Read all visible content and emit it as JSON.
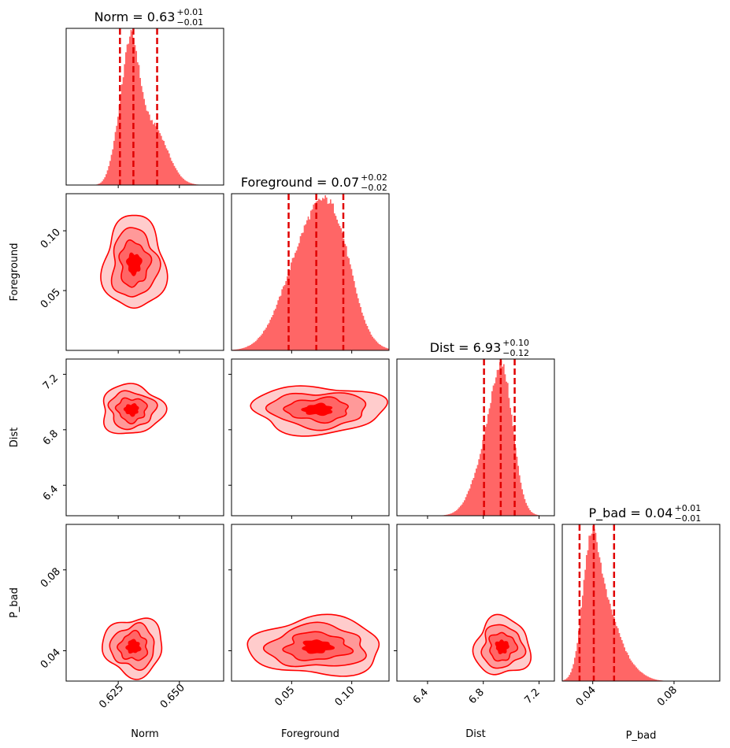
{
  "chart_data": {
    "type": "corner",
    "parameters": [
      {
        "name": "Norm",
        "title_main": "Norm = 0.63",
        "title_sup": "+0.01",
        "title_sub": "−0.01",
        "range": [
          0.6037,
          0.6681
        ],
        "ticks": [
          0.625,
          0.65
        ],
        "tick_labels": [
          "0.625",
          "0.650"
        ],
        "quantiles": [
          0.6257,
          0.6312,
          0.6409
        ],
        "peaks": [
          {
            "c": 0.63,
            "s": 0.0035,
            "a": 0.7
          },
          {
            "c": 0.639,
            "s": 0.006,
            "a": 0.32
          },
          {
            "c": 0.624,
            "s": 0.0028,
            "a": 0.12
          }
        ]
      },
      {
        "name": "Foreground",
        "title_main": "Foreground = 0.07",
        "title_sup": "+0.02",
        "title_sub": "−0.02",
        "range": [
          0.0,
          0.131
        ],
        "ticks": [
          0.05,
          0.1
        ],
        "tick_labels": [
          "0.05",
          "0.10"
        ],
        "quantiles": [
          0.0475,
          0.0705,
          0.093
        ],
        "peaks": [
          {
            "c": 0.078,
            "s": 0.018,
            "a": 0.78
          },
          {
            "c": 0.052,
            "s": 0.017,
            "a": 0.32
          },
          {
            "c": 0.092,
            "s": 0.012,
            "a": 0.15
          }
        ]
      },
      {
        "name": "Dist",
        "title_main": "Dist = 6.93",
        "title_sup": "+0.10",
        "title_sub": "−0.12",
        "range": [
          6.18,
          7.31
        ],
        "ticks": [
          6.4,
          6.8,
          7.2
        ],
        "tick_labels": [
          "6.4",
          "6.8",
          "7.2"
        ],
        "quantiles": [
          6.805,
          6.925,
          7.025
        ],
        "peaks": [
          {
            "c": 6.945,
            "s": 0.075,
            "a": 0.7
          },
          {
            "c": 6.84,
            "s": 0.105,
            "a": 0.4
          }
        ]
      },
      {
        "name": "P_bad",
        "title_main": "P_bad = 0.04",
        "title_sup": "+0.01",
        "title_sub": "−0.01",
        "range": [
          0.025,
          0.1025
        ],
        "ticks": [
          0.04,
          0.08
        ],
        "tick_labels": [
          "0.04",
          "0.08"
        ],
        "quantiles": [
          0.0335,
          0.0405,
          0.0505
        ],
        "peaks": [
          {
            "c": 0.039,
            "s": 0.0042,
            "a": 0.72
          },
          {
            "c": 0.047,
            "s": 0.006,
            "a": 0.38
          },
          {
            "c": 0.058,
            "s": 0.0065,
            "a": 0.07
          }
        ]
      }
    ],
    "y_axis_ticks": {
      "Foreground": {
        "ticks": [
          0.05,
          0.1
        ],
        "tick_labels": [
          "0.05",
          "0.10"
        ]
      },
      "Dist": {
        "ticks": [
          6.4,
          6.8,
          7.2
        ],
        "tick_labels": [
          "6.4",
          "6.8",
          "7.2"
        ]
      },
      "P_bad": {
        "ticks": [
          0.04,
          0.08
        ],
        "tick_labels": [
          "0.04",
          "0.08"
        ]
      }
    },
    "contours": [
      {
        "row": 1,
        "col": 0,
        "center": [
          0.6315,
          0.0725
        ],
        "spread": [
          0.006,
          0.0185
        ]
      },
      {
        "row": 2,
        "col": 0,
        "center": [
          0.6305,
          6.945
        ],
        "spread": [
          0.006,
          0.085
        ]
      },
      {
        "row": 2,
        "col": 1,
        "center": [
          0.072,
          6.945
        ],
        "spread": [
          0.026,
          0.082
        ]
      },
      {
        "row": 3,
        "col": 0,
        "center": [
          0.6312,
          0.042
        ],
        "spread": [
          0.0058,
          0.0068
        ]
      },
      {
        "row": 3,
        "col": 1,
        "center": [
          0.071,
          0.042
        ],
        "spread": [
          0.026,
          0.0068
        ]
      },
      {
        "row": 3,
        "col": 2,
        "center": [
          6.935,
          0.042
        ],
        "spread": [
          0.095,
          0.0068
        ]
      }
    ],
    "contour_levels": 4,
    "grid": false,
    "colors": {
      "series": "#ff0000",
      "hist_fill": "#ff6666",
      "quantile_line": "#e00000"
    }
  }
}
